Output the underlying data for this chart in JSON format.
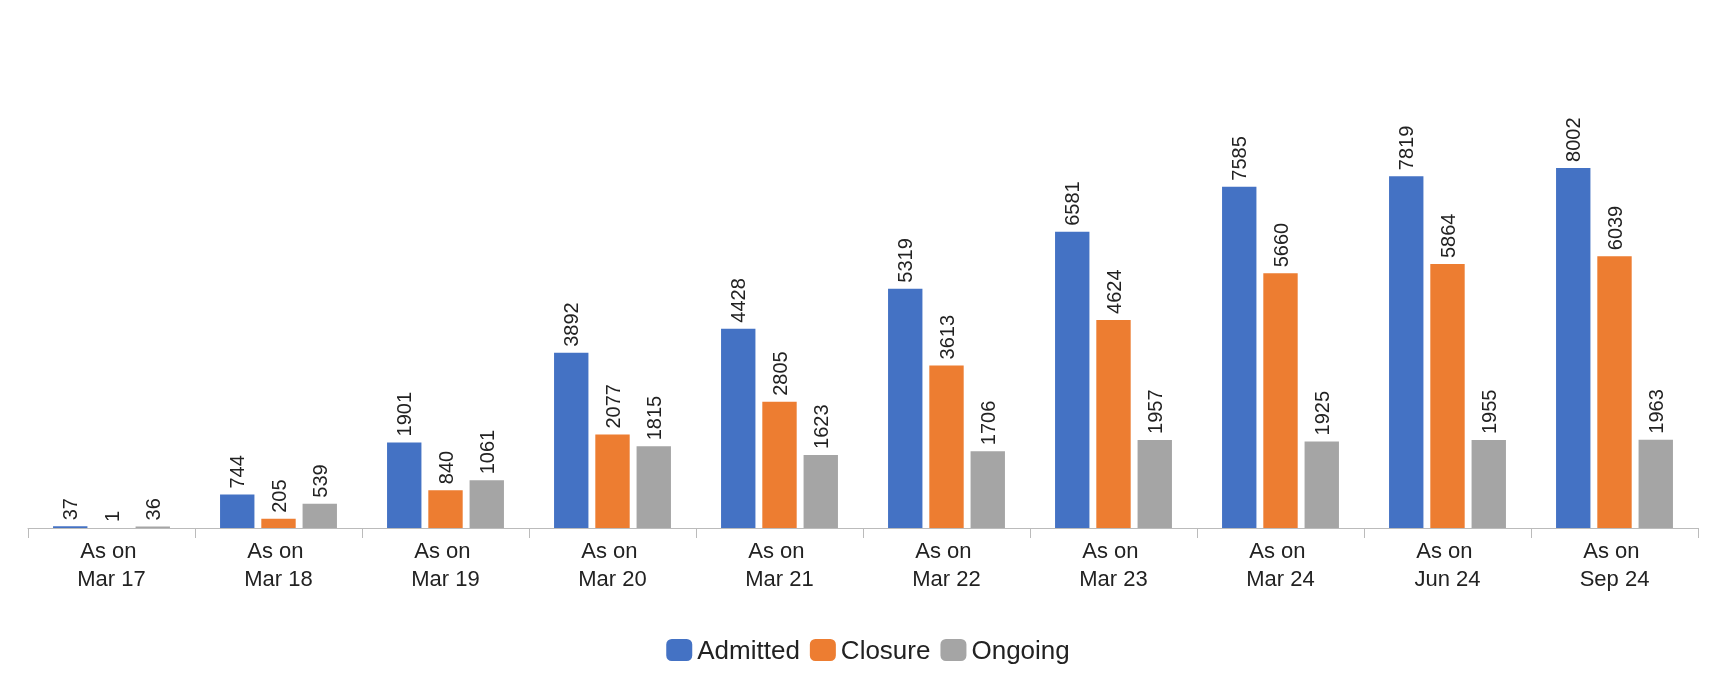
{
  "chart_data": {
    "type": "bar",
    "categories": [
      "As on Mar 17",
      "As on Mar 18",
      "As on Mar 19",
      "As on Mar 20",
      "As on Mar 21",
      "As on Mar 22",
      "As on Mar 23",
      "As on Mar 24",
      "As on Jun 24",
      "As on Sep 24"
    ],
    "series": [
      {
        "name": "Admitted",
        "color": "#4472c4",
        "values": [
          37,
          744,
          1901,
          3892,
          4428,
          5319,
          6581,
          7585,
          7819,
          8002
        ]
      },
      {
        "name": "Closure",
        "color": "#ed7d31",
        "values": [
          1,
          205,
          840,
          2077,
          2805,
          3613,
          4624,
          5660,
          5864,
          6039
        ]
      },
      {
        "name": "Ongoing",
        "color": "#a5a5a5",
        "values": [
          36,
          539,
          1061,
          1815,
          1623,
          1706,
          1957,
          1925,
          1955,
          1963
        ]
      }
    ],
    "data_labels": true,
    "legend": "bottom",
    "grid": false
  }
}
